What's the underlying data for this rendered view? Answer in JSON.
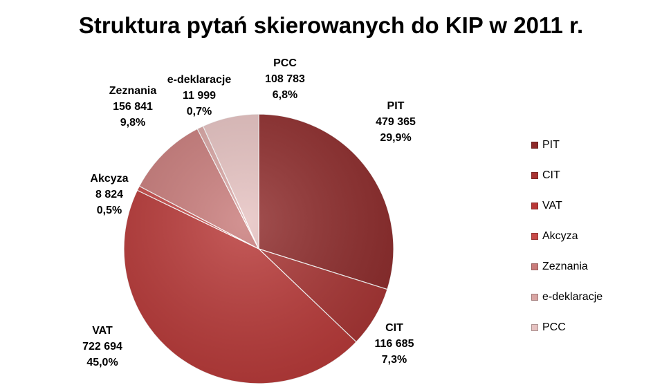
{
  "chart_data": {
    "type": "pie",
    "title": "Struktura pytań skierowanych do KIP w 2011 r.",
    "legend_position": "right",
    "slices": [
      {
        "name": "PIT",
        "value": 479365,
        "value_label": "479 365",
        "percent_label": "29,9%",
        "color": "#8e2a2a"
      },
      {
        "name": "CIT",
        "value": 116685,
        "value_label": "116 685",
        "percent_label": "7,3%",
        "color": "#a83332"
      },
      {
        "name": "VAT",
        "value": 722694,
        "value_label": "722 694",
        "percent_label": "45,0%",
        "color": "#b93837"
      },
      {
        "name": "Akcyza",
        "value": 8824,
        "value_label": "8 824",
        "percent_label": "0,5%",
        "color": "#c84a48"
      },
      {
        "name": "Zeznania",
        "value": 156841,
        "value_label": "156 841",
        "percent_label": "9,8%",
        "color": "#c97b7a"
      },
      {
        "name": "e-deklaracje",
        "value": 11999,
        "value_label": "11 999",
        "percent_label": "0,7%",
        "color": "#d9a5a3"
      },
      {
        "name": "PCC",
        "value": 108783,
        "value_label": "108 783",
        "percent_label": "6,8%",
        "color": "#e6c2c1"
      }
    ]
  }
}
